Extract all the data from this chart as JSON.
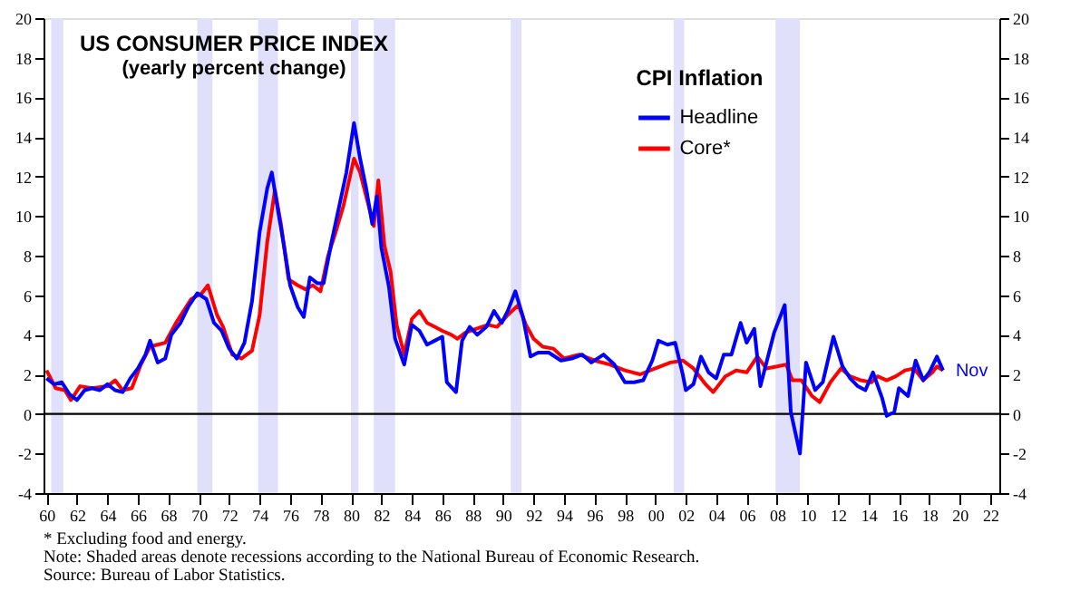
{
  "chart_data": {
    "type": "line",
    "title": "US CONSUMER PRICE INDEX",
    "subtitle": "(yearly percent change)",
    "legend_title": "CPI Inflation",
    "legend": "top",
    "grid": false,
    "line_style": "solid",
    "marker": "none",
    "xlim": [
      1959.8,
      2022.6
    ],
    "ylim": [
      -4,
      20
    ],
    "yticks": [
      -4,
      -2,
      0,
      2,
      4,
      6,
      8,
      10,
      12,
      14,
      16,
      18,
      20
    ],
    "y2lim": [
      -4,
      20
    ],
    "y2ticks": [
      -4,
      -2,
      0,
      2,
      4,
      6,
      8,
      10,
      12,
      14,
      16,
      18,
      20
    ],
    "xticks": [
      {
        "value": 1960,
        "label": "60"
      },
      {
        "value": 1962,
        "label": "62"
      },
      {
        "value": 1964,
        "label": "64"
      },
      {
        "value": 1966,
        "label": "66"
      },
      {
        "value": 1968,
        "label": "68"
      },
      {
        "value": 1970,
        "label": "70"
      },
      {
        "value": 1972,
        "label": "72"
      },
      {
        "value": 1974,
        "label": "74"
      },
      {
        "value": 1976,
        "label": "76"
      },
      {
        "value": 1978,
        "label": "78"
      },
      {
        "value": 1980,
        "label": "80"
      },
      {
        "value": 1982,
        "label": "82"
      },
      {
        "value": 1984,
        "label": "84"
      },
      {
        "value": 1986,
        "label": "86"
      },
      {
        "value": 1988,
        "label": "88"
      },
      {
        "value": 1990,
        "label": "90"
      },
      {
        "value": 1992,
        "label": "92"
      },
      {
        "value": 1994,
        "label": "94"
      },
      {
        "value": 1996,
        "label": "96"
      },
      {
        "value": 1998,
        "label": "98"
      },
      {
        "value": 2000,
        "label": "00"
      },
      {
        "value": 2002,
        "label": "02"
      },
      {
        "value": 2004,
        "label": "04"
      },
      {
        "value": 2006,
        "label": "06"
      },
      {
        "value": 2008,
        "label": "08"
      },
      {
        "value": 2010,
        "label": "10"
      },
      {
        "value": 2012,
        "label": "12"
      },
      {
        "value": 2014,
        "label": "14"
      },
      {
        "value": 2016,
        "label": "16"
      },
      {
        "value": 2018,
        "label": "18"
      },
      {
        "value": 2020,
        "label": "20"
      },
      {
        "value": 2022,
        "label": "22"
      }
    ],
    "series": [
      {
        "name": "Core*",
        "color": "#ff0000",
        "x": [
          1960.0,
          1960.6,
          1961.2,
          1961.6,
          1962.2,
          1963.0,
          1964.0,
          1964.5,
          1965.0,
          1965.6,
          1966.2,
          1966.8,
          1967.3,
          1967.8,
          1968.5,
          1969.0,
          1969.5,
          1970.2,
          1970.6,
          1971.2,
          1971.6,
          1972.2,
          1972.8,
          1973.5,
          1974.0,
          1974.5,
          1975.0,
          1975.4,
          1975.9,
          1976.5,
          1977.0,
          1977.5,
          1978.0,
          1978.5,
          1979.0,
          1979.5,
          1980.2,
          1980.6,
          1981.0,
          1981.5,
          1981.8,
          1982.2,
          1982.6,
          1983.0,
          1983.5,
          1984.0,
          1984.5,
          1985.0,
          1985.5,
          1986.0,
          1986.6,
          1987.0,
          1987.5,
          1988.2,
          1989.0,
          1989.6,
          1990.3,
          1991.0,
          1991.5,
          1992.0,
          1992.6,
          1993.3,
          1994.0,
          1995.0,
          1996.0,
          1997.0,
          1998.0,
          1999.0,
          2000.0,
          2001.0,
          2001.8,
          2002.5,
          2003.3,
          2003.8,
          2004.6,
          2005.3,
          2006.0,
          2006.7,
          2007.3,
          2008.0,
          2008.6,
          2009.0,
          2009.6,
          2010.3,
          2010.8,
          2011.5,
          2012.2,
          2012.8,
          2013.5,
          2014.2,
          2014.6,
          2015.2,
          2015.8,
          2016.4,
          2017.0,
          2017.6,
          2018.2,
          2018.5,
          2018.9
        ],
        "values": [
          2.2,
          1.3,
          1.2,
          0.7,
          1.4,
          1.3,
          1.4,
          1.7,
          1.2,
          1.3,
          2.5,
          3.4,
          3.5,
          3.6,
          4.6,
          5.2,
          5.8,
          6.1,
          6.5,
          5.0,
          4.4,
          3.0,
          2.8,
          3.2,
          5.0,
          8.7,
          11.3,
          9.6,
          6.8,
          6.5,
          6.3,
          6.5,
          6.2,
          8.0,
          9.2,
          10.5,
          12.9,
          12.2,
          11.0,
          9.5,
          11.8,
          8.5,
          7.2,
          4.5,
          3.0,
          4.8,
          5.2,
          4.6,
          4.4,
          4.2,
          4.0,
          3.8,
          4.1,
          4.3,
          4.5,
          4.4,
          5.0,
          5.5,
          4.5,
          3.8,
          3.4,
          3.3,
          2.8,
          3.0,
          2.7,
          2.5,
          2.2,
          2.0,
          2.3,
          2.6,
          2.7,
          2.3,
          1.5,
          1.1,
          1.9,
          2.2,
          2.1,
          2.9,
          2.3,
          2.4,
          2.5,
          1.7,
          1.7,
          0.9,
          0.6,
          1.6,
          2.3,
          1.9,
          1.7,
          1.6,
          1.9,
          1.7,
          1.9,
          2.2,
          2.3,
          1.7,
          2.1,
          2.4,
          2.2
        ]
      },
      {
        "name": "Headline",
        "color": "#0000ff",
        "x": [
          1960.0,
          1960.5,
          1961.0,
          1961.5,
          1962.0,
          1962.5,
          1963.0,
          1963.5,
          1964.0,
          1964.5,
          1965.0,
          1965.5,
          1966.0,
          1966.5,
          1966.8,
          1967.3,
          1967.8,
          1968.2,
          1968.8,
          1969.3,
          1969.9,
          1970.5,
          1971.0,
          1971.5,
          1972.0,
          1972.5,
          1973.0,
          1973.5,
          1974.0,
          1974.5,
          1974.8,
          1975.2,
          1975.6,
          1976.0,
          1976.5,
          1976.9,
          1977.3,
          1977.8,
          1978.2,
          1978.7,
          1979.2,
          1979.7,
          1980.2,
          1980.6,
          1981.0,
          1981.4,
          1981.7,
          1982.0,
          1982.5,
          1982.9,
          1983.5,
          1984.0,
          1984.5,
          1985.0,
          1985.5,
          1986.0,
          1986.3,
          1986.9,
          1987.3,
          1987.8,
          1988.3,
          1988.9,
          1989.4,
          1989.9,
          1990.3,
          1990.8,
          1991.3,
          1991.8,
          1992.3,
          1993.0,
          1993.8,
          1994.5,
          1995.2,
          1995.8,
          1996.6,
          1997.3,
          1998.0,
          1998.6,
          1999.2,
          1999.8,
          2000.2,
          2000.8,
          2001.3,
          2001.8,
          2002.0,
          2002.5,
          2003.0,
          2003.5,
          2004.0,
          2004.5,
          2005.0,
          2005.6,
          2006.0,
          2006.5,
          2006.9,
          2007.3,
          2007.8,
          2008.5,
          2008.9,
          2009.5,
          2009.9,
          2010.5,
          2011.0,
          2011.7,
          2012.3,
          2012.8,
          2013.3,
          2013.8,
          2014.3,
          2014.9,
          2015.2,
          2015.7,
          2016.0,
          2016.6,
          2017.1,
          2017.6,
          2018.0,
          2018.5,
          2018.9
        ],
        "values": [
          1.8,
          1.5,
          1.6,
          1.0,
          0.7,
          1.2,
          1.3,
          1.2,
          1.5,
          1.2,
          1.1,
          1.8,
          2.3,
          3.0,
          3.7,
          2.6,
          2.8,
          4.0,
          4.6,
          5.4,
          6.1,
          5.8,
          4.6,
          4.2,
          3.3,
          2.8,
          3.6,
          5.7,
          9.2,
          11.4,
          12.2,
          10.3,
          8.5,
          6.5,
          5.4,
          4.9,
          6.9,
          6.6,
          6.6,
          8.6,
          10.4,
          12.2,
          14.7,
          12.9,
          11.4,
          9.6,
          11.0,
          8.4,
          6.4,
          3.8,
          2.5,
          4.5,
          4.2,
          3.5,
          3.7,
          3.9,
          1.6,
          1.1,
          3.7,
          4.4,
          4.0,
          4.4,
          5.2,
          4.6,
          5.2,
          6.2,
          4.9,
          2.9,
          3.1,
          3.1,
          2.7,
          2.8,
          3.0,
          2.6,
          3.0,
          2.5,
          1.6,
          1.6,
          1.7,
          2.7,
          3.7,
          3.5,
          3.6,
          2.0,
          1.2,
          1.5,
          2.9,
          2.1,
          1.8,
          3.0,
          3.0,
          4.6,
          3.6,
          4.3,
          1.4,
          2.6,
          4.1,
          5.5,
          0.1,
          -2.0,
          2.6,
          1.2,
          1.6,
          3.9,
          2.4,
          1.8,
          1.4,
          1.2,
          2.1,
          0.8,
          -0.1,
          0.1,
          1.3,
          0.9,
          2.7,
          1.7,
          2.1,
          2.9,
          2.2
        ]
      }
    ],
    "bands": [
      {
        "axis": "x",
        "from": 1960.3,
        "to": 1961.1,
        "color": "#e0e0fa"
      },
      {
        "axis": "x",
        "from": 1969.9,
        "to": 1970.9,
        "color": "#e0e0fa"
      },
      {
        "axis": "x",
        "from": 1973.9,
        "to": 1975.2,
        "color": "#e0e0fa"
      },
      {
        "axis": "x",
        "from": 1980.0,
        "to": 1980.5,
        "color": "#e0e0fa"
      },
      {
        "axis": "x",
        "from": 1981.5,
        "to": 1982.9,
        "color": "#e0e0fa"
      },
      {
        "axis": "x",
        "from": 1990.5,
        "to": 1991.2,
        "color": "#e0e0fa"
      },
      {
        "axis": "x",
        "from": 2001.2,
        "to": 2001.9,
        "color": "#e0e0fa"
      },
      {
        "axis": "x",
        "from": 2007.9,
        "to": 2009.5,
        "color": "#e0e0fa"
      }
    ],
    "ref_lines": [
      {
        "axis": "y",
        "value": 0,
        "color": "#000000"
      }
    ],
    "annotations": [
      {
        "text": "Nov",
        "x": 2018.9,
        "y": 2.2
      },
      "* Excluding food and energy.",
      "Note: Shaded areas denote recessions according to the National Bureau of Economic Research.",
      "Source: Bureau of Labor Statistics."
    ]
  }
}
